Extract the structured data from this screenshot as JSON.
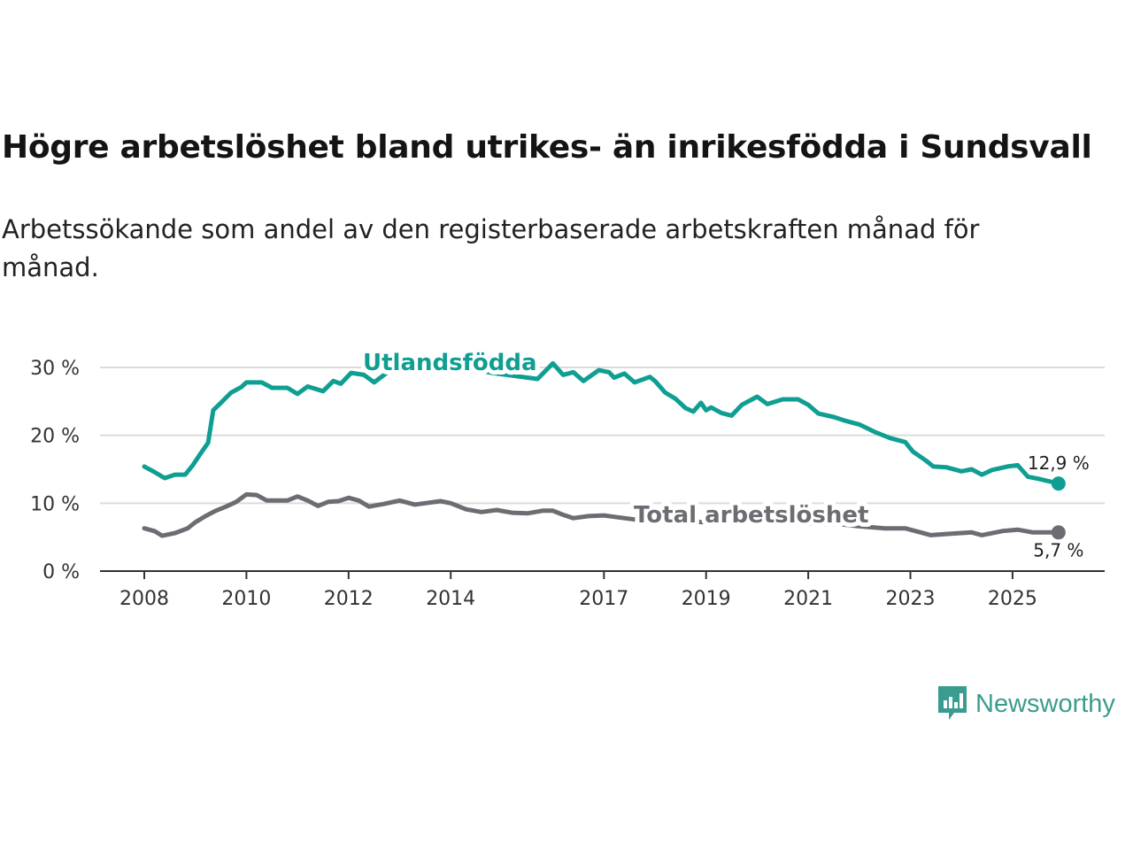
{
  "title": "Högre arbetslöshet bland utrikes- än inrikesfödda i Sundsvall",
  "subtitle": "Arbetssökande som andel av den registerbaserade arbetskraften månad för månad.",
  "brand": "Newsworthy",
  "colors": {
    "foreign": "#0f9e92",
    "total": "#6e6c72",
    "brand": "#3a9c8e"
  },
  "chart_data": {
    "type": "line",
    "title": "Högre arbetslöshet bland utrikes- än inrikesfödda i Sundsvall",
    "xlabel": "",
    "ylabel": "",
    "xlim": [
      2007.55,
      2026.55
    ],
    "ylim": [
      0,
      30
    ],
    "yticks": [
      0,
      10,
      20,
      30
    ],
    "ytick_labels": [
      "0 %",
      "10 %",
      "20 %",
      "30 %"
    ],
    "xticks": [
      2008,
      2010,
      2012,
      2014,
      2017,
      2019,
      2021,
      2023,
      2025
    ],
    "xtick_labels": [
      "2008",
      "2010",
      "2012",
      "2014",
      "2017",
      "2019",
      "2021",
      "2023",
      "2025"
    ],
    "grid": true,
    "series": [
      {
        "name": "Utlandsfödda",
        "color": "#0f9e92",
        "end_label": "12,9 %",
        "x": [
          2008.0,
          2008.2,
          2008.4,
          2008.6,
          2008.8,
          2008.95,
          2009.1,
          2009.25,
          2009.35,
          2009.5,
          2009.7,
          2009.9,
          2010.0,
          2010.3,
          2010.5,
          2010.8,
          2011.0,
          2011.2,
          2011.5,
          2011.7,
          2011.85,
          2012.05,
          2012.3,
          2012.5,
          2012.8,
          2013.2,
          2013.6,
          2014.0,
          2014.4,
          2014.8,
          2015.2,
          2015.7,
          2016.0,
          2016.2,
          2016.4,
          2016.6,
          2016.9,
          2017.1,
          2017.2,
          2017.4,
          2017.6,
          2017.9,
          2018.0,
          2018.2,
          2018.4,
          2018.6,
          2018.75,
          2018.9,
          2019.0,
          2019.1,
          2019.3,
          2019.5,
          2019.7,
          2020.0,
          2020.2,
          2020.5,
          2020.8,
          2021.0,
          2021.2,
          2021.5,
          2021.7,
          2022.0,
          2022.3,
          2022.6,
          2022.9,
          2023.05,
          2023.3,
          2023.45,
          2023.7,
          2024.0,
          2024.2,
          2024.4,
          2024.6,
          2024.9,
          2025.1,
          2025.3,
          2025.5,
          2025.9
        ],
        "y": [
          15.4,
          14.6,
          13.7,
          14.2,
          14.2,
          15.6,
          17.3,
          18.9,
          23.7,
          24.8,
          26.3,
          27.1,
          27.8,
          27.8,
          27.0,
          27.0,
          26.1,
          27.2,
          26.5,
          28.0,
          27.6,
          29.2,
          28.9,
          27.8,
          29.5,
          29.8,
          30.0,
          29.6,
          29.8,
          29.2,
          28.8,
          28.3,
          30.6,
          28.9,
          29.3,
          28.0,
          29.6,
          29.3,
          28.5,
          29.1,
          27.8,
          28.6,
          28.0,
          26.3,
          25.4,
          24.0,
          23.5,
          24.8,
          23.7,
          24.1,
          23.3,
          22.9,
          24.5,
          25.7,
          24.6,
          25.3,
          25.3,
          24.5,
          23.2,
          22.7,
          22.2,
          21.6,
          20.5,
          19.6,
          19.0,
          17.6,
          16.3,
          15.4,
          15.3,
          14.7,
          15.0,
          14.2,
          14.9,
          15.4,
          15.6,
          13.9,
          13.6,
          12.9
        ]
      },
      {
        "name": "Total arbetslöshet",
        "color": "#6e6c72",
        "end_label": "5,7 %",
        "x": [
          2008.0,
          2008.2,
          2008.35,
          2008.6,
          2008.85,
          2009.0,
          2009.2,
          2009.4,
          2009.6,
          2009.8,
          2010.0,
          2010.2,
          2010.4,
          2010.8,
          2011.0,
          2011.2,
          2011.4,
          2011.6,
          2011.8,
          2012.0,
          2012.2,
          2012.4,
          2012.7,
          2013.0,
          2013.3,
          2013.5,
          2013.8,
          2014.0,
          2014.3,
          2014.6,
          2014.9,
          2015.2,
          2015.5,
          2015.8,
          2016.0,
          2016.2,
          2016.4,
          2016.7,
          2017.0,
          2017.2,
          2017.6,
          2018.0,
          2018.5,
          2019.0,
          2019.5,
          2020.0,
          2020.5,
          2021.0,
          2021.65,
          2022.0,
          2022.5,
          2022.9,
          2023.2,
          2023.4,
          2023.8,
          2024.2,
          2024.4,
          2024.8,
          2025.1,
          2025.4,
          2025.9
        ],
        "y": [
          6.3,
          5.9,
          5.2,
          5.6,
          6.3,
          7.2,
          8.1,
          8.9,
          9.5,
          10.2,
          11.3,
          11.2,
          10.4,
          10.4,
          11.0,
          10.4,
          9.6,
          10.2,
          10.3,
          10.8,
          10.4,
          9.5,
          9.9,
          10.4,
          9.8,
          10.0,
          10.3,
          10.0,
          9.1,
          8.7,
          9.0,
          8.6,
          8.5,
          8.9,
          8.9,
          8.3,
          7.8,
          8.1,
          8.2,
          8.0,
          7.6,
          7.4,
          7.3,
          7.2,
          7.2,
          7.3,
          7.1,
          7.0,
          6.9,
          6.6,
          6.3,
          6.3,
          5.7,
          5.3,
          5.5,
          5.7,
          5.3,
          5.9,
          6.1,
          5.7,
          5.7
        ]
      }
    ]
  }
}
